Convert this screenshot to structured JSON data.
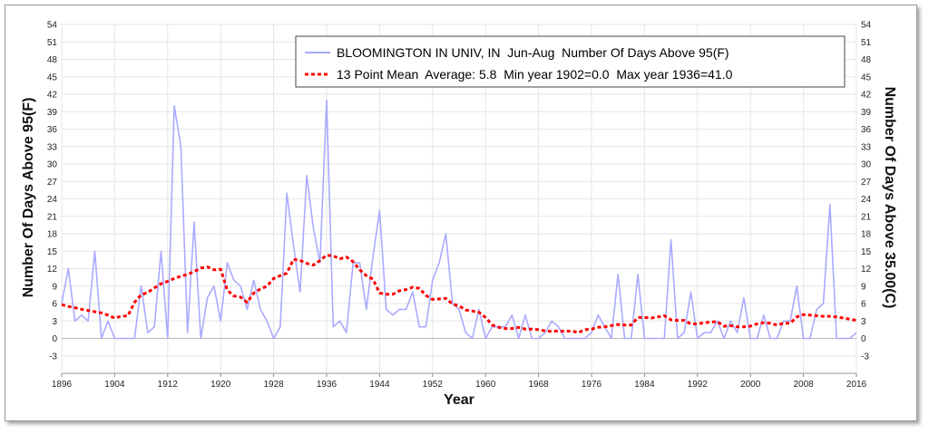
{
  "chart_data": {
    "type": "line",
    "title": "",
    "xlabel": "Year",
    "ylabel": "Number Of Days Above 95(F)",
    "ylabel_right": "Number Of Days Above 35.00(C)",
    "xlim": [
      1896,
      2016
    ],
    "ylim": [
      -6,
      54
    ],
    "x_ticks": [
      "1896",
      "1904",
      "1912",
      "1920",
      "1928",
      "1936",
      "1944",
      "1952",
      "1960",
      "1968",
      "1976",
      "1984",
      "1992",
      "2000",
      "2008",
      "2016"
    ],
    "y_ticks": [
      "-3",
      "0",
      "3",
      "6",
      "9",
      "12",
      "15",
      "18",
      "21",
      "24",
      "27",
      "30",
      "33",
      "36",
      "39",
      "42",
      "45",
      "48",
      "51",
      "54"
    ],
    "grid": true,
    "legend": "top-right",
    "series": [
      {
        "name": "BLOOMINGTON IN UNIV, IN  Jun-Aug  Number Of Days Above 95(F)",
        "color": "#aaaaff",
        "style": "solid",
        "x": [
          1896,
          1897,
          1898,
          1899,
          1900,
          1901,
          1902,
          1903,
          1904,
          1905,
          1906,
          1907,
          1908,
          1909,
          1910,
          1911,
          1912,
          1913,
          1914,
          1915,
          1916,
          1917,
          1918,
          1919,
          1920,
          1921,
          1922,
          1923,
          1924,
          1925,
          1926,
          1927,
          1928,
          1929,
          1930,
          1931,
          1932,
          1933,
          1934,
          1935,
          1936,
          1937,
          1938,
          1939,
          1940,
          1941,
          1942,
          1943,
          1944,
          1945,
          1946,
          1947,
          1948,
          1949,
          1950,
          1951,
          1952,
          1953,
          1954,
          1955,
          1956,
          1957,
          1958,
          1959,
          1960,
          1961,
          1962,
          1963,
          1964,
          1965,
          1966,
          1967,
          1968,
          1969,
          1970,
          1971,
          1972,
          1973,
          1974,
          1975,
          1976,
          1977,
          1978,
          1979,
          1980,
          1981,
          1982,
          1983,
          1984,
          1985,
          1986,
          1987,
          1988,
          1989,
          1990,
          1991,
          1992,
          1993,
          1994,
          1995,
          1996,
          1997,
          1998,
          1999,
          2000,
          2001,
          2002,
          2003,
          2004,
          2005,
          2006,
          2007,
          2008,
          2009,
          2010,
          2011,
          2012,
          2013,
          2014,
          2015,
          2016
        ],
        "values": [
          6,
          12,
          3,
          4,
          3,
          15,
          0,
          3,
          0,
          0,
          0,
          0,
          9,
          1,
          2,
          15,
          0,
          40,
          33,
          1,
          20,
          0,
          7,
          9,
          3,
          13,
          10,
          9,
          5,
          10,
          5,
          3,
          0,
          2,
          25,
          16,
          8,
          28,
          19,
          13,
          41,
          2,
          3,
          1,
          13,
          13,
          5,
          14,
          22,
          5,
          4,
          5,
          5,
          8,
          2,
          2,
          10,
          13,
          18,
          6,
          5,
          1,
          0,
          5,
          0,
          2,
          2,
          2,
          4,
          0,
          4,
          0,
          0,
          1,
          3,
          2,
          0,
          0,
          0,
          0,
          1,
          4,
          2,
          0,
          11,
          0,
          0,
          11,
          0,
          0,
          0,
          0,
          17,
          0,
          1,
          8,
          0,
          1,
          1,
          3,
          0,
          3,
          1,
          7,
          0,
          0,
          4,
          0,
          0,
          3,
          3,
          9,
          0,
          0,
          5,
          6,
          23,
          0,
          0,
          0,
          1
        ],
        "legend_label": "BLOOMINGTON IN UNIV, IN  Jun-Aug  Number Of Days Above 95(F)"
      },
      {
        "name": "13 Point Mean",
        "color": "#ff0000",
        "style": "dotted",
        "x": [
          1896,
          1897,
          1898,
          1899,
          1900,
          1901,
          1902,
          1903,
          1904,
          1905,
          1906,
          1907,
          1908,
          1909,
          1910,
          1911,
          1912,
          1913,
          1914,
          1915,
          1916,
          1917,
          1918,
          1919,
          1920,
          1921,
          1922,
          1923,
          1924,
          1925,
          1926,
          1927,
          1928,
          1929,
          1930,
          1931,
          1932,
          1933,
          1934,
          1935,
          1936,
          1937,
          1938,
          1939,
          1940,
          1941,
          1942,
          1943,
          1944,
          1945,
          1946,
          1947,
          1948,
          1949,
          1950,
          1951,
          1952,
          1953,
          1954,
          1955,
          1956,
          1957,
          1958,
          1959,
          1960,
          1961,
          1962,
          1963,
          1964,
          1965,
          1966,
          1967,
          1968,
          1969,
          1970,
          1971,
          1972,
          1973,
          1974,
          1975,
          1976,
          1977,
          1978,
          1979,
          1980,
          1981,
          1982,
          1983,
          1984,
          1985,
          1986,
          1987,
          1988,
          1989,
          1990,
          1991,
          1992,
          1993,
          1994,
          1995,
          1996,
          1997,
          1998,
          1999,
          2000,
          2001,
          2002,
          2003,
          2004,
          2005,
          2006,
          2007,
          2008,
          2009,
          2010,
          2011,
          2012,
          2013,
          2014,
          2015,
          2016
        ],
        "values": [
          5.8,
          5.5,
          5.3,
          5.0,
          4.8,
          4.6,
          4.4,
          4.0,
          3.5,
          3.8,
          3.9,
          6.2,
          7.5,
          7.9,
          8.7,
          9.4,
          9.8,
          10.3,
          10.7,
          11.0,
          11.5,
          12.1,
          12.3,
          11.8,
          11.9,
          8.3,
          7.3,
          7.1,
          6.2,
          7.8,
          8.5,
          9.0,
          10.3,
          10.8,
          11.2,
          13.6,
          13.4,
          12.9,
          12.6,
          13.4,
          14.3,
          14.2,
          13.7,
          14.0,
          13.2,
          11.8,
          10.8,
          10.2,
          7.8,
          7.6,
          7.6,
          8.2,
          8.4,
          8.8,
          8.6,
          7.4,
          6.7,
          6.8,
          6.9,
          5.9,
          5.6,
          4.9,
          4.7,
          4.5,
          3.6,
          2.3,
          1.9,
          1.7,
          1.7,
          1.9,
          1.6,
          1.6,
          1.5,
          1.3,
          1.2,
          1.3,
          1.2,
          1.3,
          1.0,
          1.5,
          1.6,
          1.9,
          2.0,
          2.2,
          2.4,
          2.3,
          2.3,
          3.6,
          3.6,
          3.5,
          3.7,
          3.9,
          3.2,
          3.1,
          3.1,
          2.5,
          2.5,
          2.7,
          2.8,
          2.9,
          2.1,
          2.2,
          2.0,
          2.0,
          2.1,
          2.5,
          2.7,
          2.6,
          2.3,
          2.6,
          2.6,
          3.7,
          4.1,
          4.0,
          3.9,
          3.8,
          3.8,
          3.7,
          3.5,
          3.3,
          3.1
        ],
        "legend_label": "13 Point Mean  Average: 5.8  Min year 1902=0.0  Max year 1936=41.0"
      }
    ]
  }
}
